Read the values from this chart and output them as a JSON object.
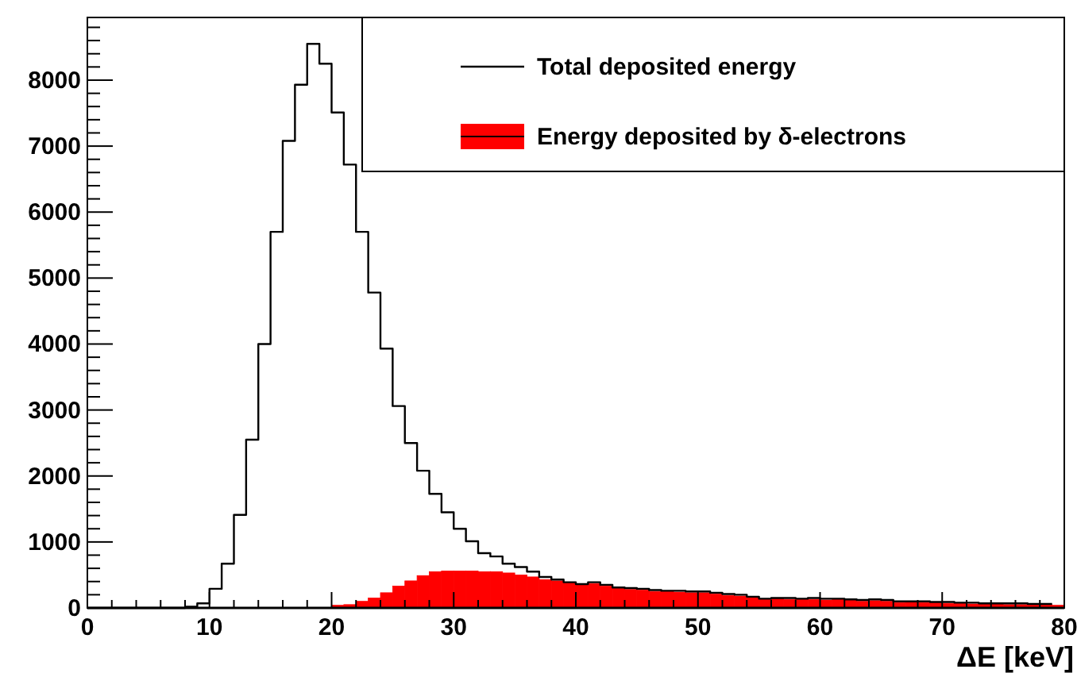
{
  "chart_data": {
    "type": "histogram",
    "xlabel": "ΔE [keV]",
    "legend": "top right",
    "bins": [
      0,
      1,
      2,
      3,
      4,
      5,
      6,
      7,
      8,
      9,
      10,
      11,
      12,
      13,
      14,
      15,
      16,
      17,
      18,
      19,
      20,
      21,
      22,
      23,
      24,
      25,
      26,
      27,
      28,
      29,
      30,
      31,
      32,
      33,
      34,
      35,
      36,
      37,
      38,
      39,
      40,
      41,
      42,
      43,
      44,
      45,
      46,
      47,
      48,
      49,
      50,
      51,
      52,
      53,
      54,
      55,
      56,
      57,
      58,
      59,
      60,
      61,
      62,
      63,
      64,
      65,
      66,
      67,
      68,
      69,
      70,
      71,
      72,
      73,
      74,
      75,
      76,
      77,
      78,
      79,
      80
    ],
    "series": [
      {
        "name": "Total deposited energy",
        "type": "step",
        "color": "#000000",
        "x": [
          0,
          1,
          2,
          3,
          4,
          5,
          6,
          7,
          8,
          9,
          10,
          11,
          12,
          13,
          14,
          15,
          16,
          17,
          18,
          19,
          20,
          21,
          22,
          23,
          24,
          25,
          26,
          27,
          28,
          29,
          30,
          31,
          32,
          33,
          34,
          35,
          36,
          37,
          38,
          39,
          40,
          41,
          42,
          43,
          44,
          45,
          46,
          47,
          48,
          49,
          50,
          51,
          52,
          53,
          54,
          55,
          56,
          57,
          58,
          59,
          60,
          61,
          62,
          63,
          64,
          65,
          66,
          67,
          68,
          69,
          70,
          71,
          72,
          73,
          74,
          75,
          76,
          77,
          78,
          79
        ],
        "values": [
          0,
          0,
          0,
          0,
          0,
          0,
          0,
          0,
          20,
          70,
          290,
          670,
          1410,
          2550,
          4000,
          5700,
          7080,
          7930,
          8550,
          8250,
          7510,
          6720,
          5700,
          4780,
          3930,
          3060,
          2500,
          2080,
          1730,
          1450,
          1200,
          1010,
          830,
          780,
          670,
          620,
          550,
          470,
          430,
          390,
          360,
          390,
          350,
          310,
          300,
          290,
          270,
          260,
          260,
          250,
          250,
          230,
          210,
          200,
          170,
          140,
          150,
          150,
          140,
          150,
          140,
          140,
          130,
          120,
          130,
          120,
          100,
          100,
          100,
          90,
          90,
          80,
          80,
          70,
          70,
          70,
          70,
          60,
          60,
          60
        ]
      },
      {
        "name": "Energy deposited by δ-electrons",
        "type": "histogram",
        "color": "#ff0000",
        "values": [
          0,
          0,
          0,
          0,
          0,
          0,
          0,
          0,
          0,
          0,
          0,
          0,
          0,
          0,
          0,
          0,
          0,
          0,
          0,
          0,
          40,
          50,
          100,
          150,
          230,
          330,
          410,
          490,
          550,
          560,
          560,
          560,
          550,
          550,
          530,
          500,
          470,
          430,
          410,
          380,
          350,
          370,
          330,
          300,
          280,
          270,
          250,
          250,
          240,
          230,
          230,
          210,
          190,
          180,
          160,
          130,
          140,
          130,
          130,
          130,
          120,
          130,
          120,
          100,
          110,
          100,
          80,
          90,
          80,
          80,
          70,
          70,
          60,
          60,
          60,
          50,
          50,
          50,
          50,
          40
        ]
      }
    ],
    "xlim": [
      0,
      80
    ],
    "ylim": [
      0,
      8950
    ],
    "xticks": [
      0,
      {
        "value": 2,
        "label": null
      },
      {
        "value": 4,
        "label": null
      },
      {
        "value": 6,
        "label": null
      },
      {
        "value": 8,
        "label": null
      },
      10,
      {
        "value": 12,
        "label": null
      },
      {
        "value": 14,
        "label": null
      },
      {
        "value": 16,
        "label": null
      },
      {
        "value": 18,
        "label": null
      },
      20,
      {
        "value": 22,
        "label": null
      },
      {
        "value": 24,
        "label": null
      },
      {
        "value": 26,
        "label": null
      },
      {
        "value": 28,
        "label": null
      },
      30,
      {
        "value": 32,
        "label": null
      },
      {
        "value": 34,
        "label": null
      },
      {
        "value": 36,
        "label": null
      },
      {
        "value": 38,
        "label": null
      },
      40,
      {
        "value": 42,
        "label": null
      },
      {
        "value": 44,
        "label": null
      },
      {
        "value": 46,
        "label": null
      },
      {
        "value": 48,
        "label": null
      },
      50,
      {
        "value": 52,
        "label": null
      },
      {
        "value": 54,
        "label": null
      },
      {
        "value": 56,
        "label": null
      },
      {
        "value": 58,
        "label": null
      },
      60,
      {
        "value": 62,
        "label": null
      },
      {
        "value": 64,
        "label": null
      },
      {
        "value": 66,
        "label": null
      },
      {
        "value": 68,
        "label": null
      },
      70,
      {
        "value": 72,
        "label": null
      },
      {
        "value": 74,
        "label": null
      },
      {
        "value": 76,
        "label": null
      },
      {
        "value": 78,
        "label": null
      },
      80
    ],
    "yticks": [
      0,
      {
        "value": 200,
        "label": null
      },
      {
        "value": 400,
        "label": null
      },
      {
        "value": 600,
        "label": null
      },
      {
        "value": 800,
        "label": null
      },
      1000,
      {
        "value": 1200,
        "label": null
      },
      {
        "value": 1400,
        "label": null
      },
      {
        "value": 1600,
        "label": null
      },
      {
        "value": 1800,
        "label": null
      },
      2000,
      {
        "value": 2200,
        "label": null
      },
      {
        "value": 2400,
        "label": null
      },
      {
        "value": 2600,
        "label": null
      },
      {
        "value": 2800,
        "label": null
      },
      3000,
      {
        "value": 3200,
        "label": null
      },
      {
        "value": 3400,
        "label": null
      },
      {
        "value": 3600,
        "label": null
      },
      {
        "value": 3800,
        "label": null
      },
      4000,
      {
        "value": 4200,
        "label": null
      },
      {
        "value": 4400,
        "label": null
      },
      {
        "value": 4600,
        "label": null
      },
      {
        "value": 4800,
        "label": null
      },
      5000,
      {
        "value": 5200,
        "label": null
      },
      {
        "value": 5400,
        "label": null
      },
      {
        "value": 5600,
        "label": null
      },
      {
        "value": 5800,
        "label": null
      },
      6000,
      {
        "value": 6200,
        "label": null
      },
      {
        "value": 6400,
        "label": null
      },
      {
        "value": 6600,
        "label": null
      },
      {
        "value": 6800,
        "label": null
      },
      7000,
      {
        "value": 7200,
        "label": null
      },
      {
        "value": 7400,
        "label": null
      },
      {
        "value": 7600,
        "label": null
      },
      {
        "value": 7800,
        "label": null
      },
      8000,
      {
        "value": 8200,
        "label": null
      },
      {
        "value": 8400,
        "label": null
      },
      {
        "value": 8600,
        "label": null
      },
      {
        "value": 8800,
        "label": null
      }
    ]
  }
}
